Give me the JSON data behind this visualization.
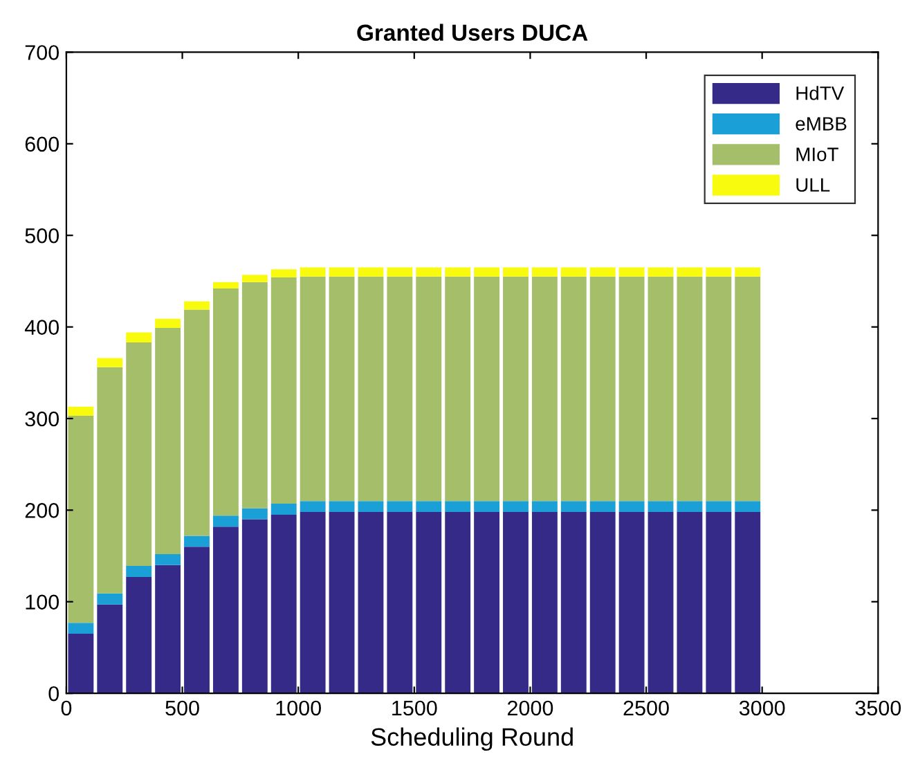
{
  "chart_data": {
    "type": "bar",
    "title": "Granted Users DUCA",
    "xlabel": "Scheduling Round",
    "stacked": true,
    "x": [
      62.5,
      187.5,
      312.5,
      437.5,
      562.5,
      687.5,
      812.5,
      937.5,
      1062.5,
      1187.5,
      1312.5,
      1437.5,
      1562.5,
      1687.5,
      1812.5,
      1937.5,
      2062.5,
      2187.5,
      2312.5,
      2437.5,
      2562.5,
      2687.5,
      2812.5,
      2937.5
    ],
    "series": [
      {
        "name": "HdTV",
        "color": "#352a87",
        "values": [
          65,
          97,
          127,
          140,
          160,
          182,
          190,
          195,
          198,
          198,
          198,
          198,
          198,
          198,
          198,
          198,
          198,
          198,
          198,
          198,
          198,
          198,
          198,
          198
        ]
      },
      {
        "name": "eMBB",
        "color": "#1a9fd6",
        "values": [
          12,
          12,
          12,
          12,
          12,
          12,
          12,
          12,
          12,
          12,
          12,
          12,
          12,
          12,
          12,
          12,
          12,
          12,
          12,
          12,
          12,
          12,
          12,
          12
        ]
      },
      {
        "name": "MIoT",
        "color": "#a5be6a",
        "values": [
          226,
          247,
          244,
          247,
          247,
          248,
          247,
          247,
          245,
          245,
          245,
          245,
          245,
          245,
          245,
          245,
          245,
          245,
          245,
          245,
          245,
          245,
          245,
          245
        ]
      },
      {
        "name": "ULL",
        "color": "#f9fb0e",
        "values": [
          10,
          10,
          11,
          10,
          9,
          7,
          8,
          9,
          10,
          10,
          10,
          10,
          10,
          10,
          10,
          10,
          10,
          10,
          10,
          10,
          10,
          10,
          10,
          10
        ]
      }
    ],
    "xlim": [
      0,
      3500
    ],
    "xticks": [
      0,
      500,
      1000,
      1500,
      2000,
      2500,
      3000,
      3500
    ],
    "ylim": [
      0,
      700
    ],
    "yticks": [
      0,
      100,
      200,
      300,
      400,
      500,
      600,
      700
    ],
    "grid": false,
    "legend": "top right"
  }
}
